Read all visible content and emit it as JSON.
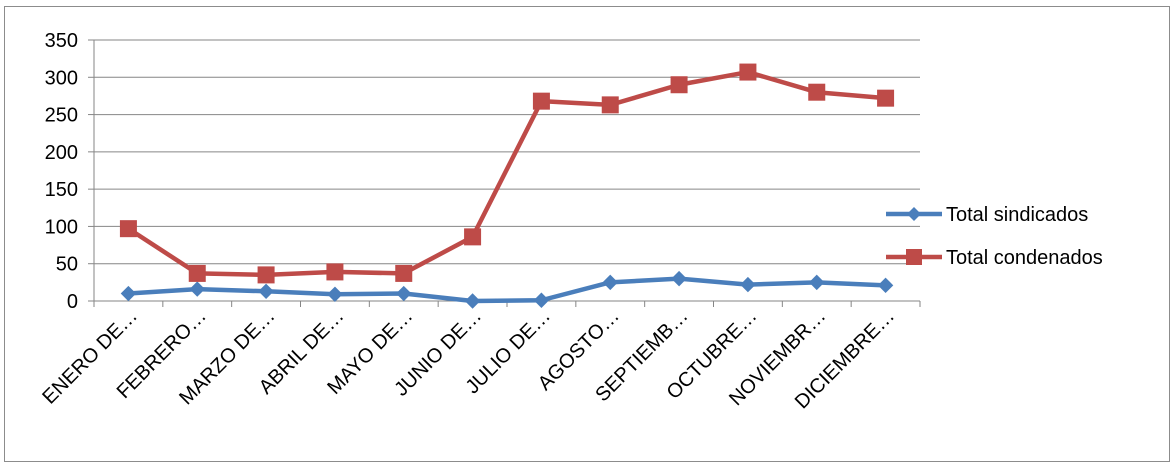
{
  "chart_data": {
    "type": "line",
    "title": "",
    "xlabel": "",
    "ylabel": "",
    "ylim": [
      0,
      350
    ],
    "yticks": [
      0,
      50,
      100,
      150,
      200,
      250,
      300,
      350
    ],
    "grid": true,
    "legend_position": "right",
    "categories": [
      "ENERO DE…",
      "FEBRERO…",
      "MARZO DE…",
      "ABRIL DE…",
      "MAYO DE…",
      "JUNIO DE…",
      "JULIO DE…",
      "AGOSTO…",
      "SEPTIEMB…",
      "OCTUBRE…",
      "NOVIEMBR…",
      "DICIEMBRE…"
    ],
    "series": [
      {
        "name": "Total sindicados",
        "color": "#4a7ebb",
        "marker": "diamond",
        "values": [
          10,
          16,
          13,
          9,
          10,
          0,
          1,
          25,
          30,
          22,
          25,
          21
        ]
      },
      {
        "name": "Total condenados",
        "color": "#be4b48",
        "marker": "square",
        "values": [
          97,
          37,
          35,
          39,
          37,
          86,
          268,
          263,
          290,
          307,
          280,
          272
        ]
      }
    ]
  }
}
